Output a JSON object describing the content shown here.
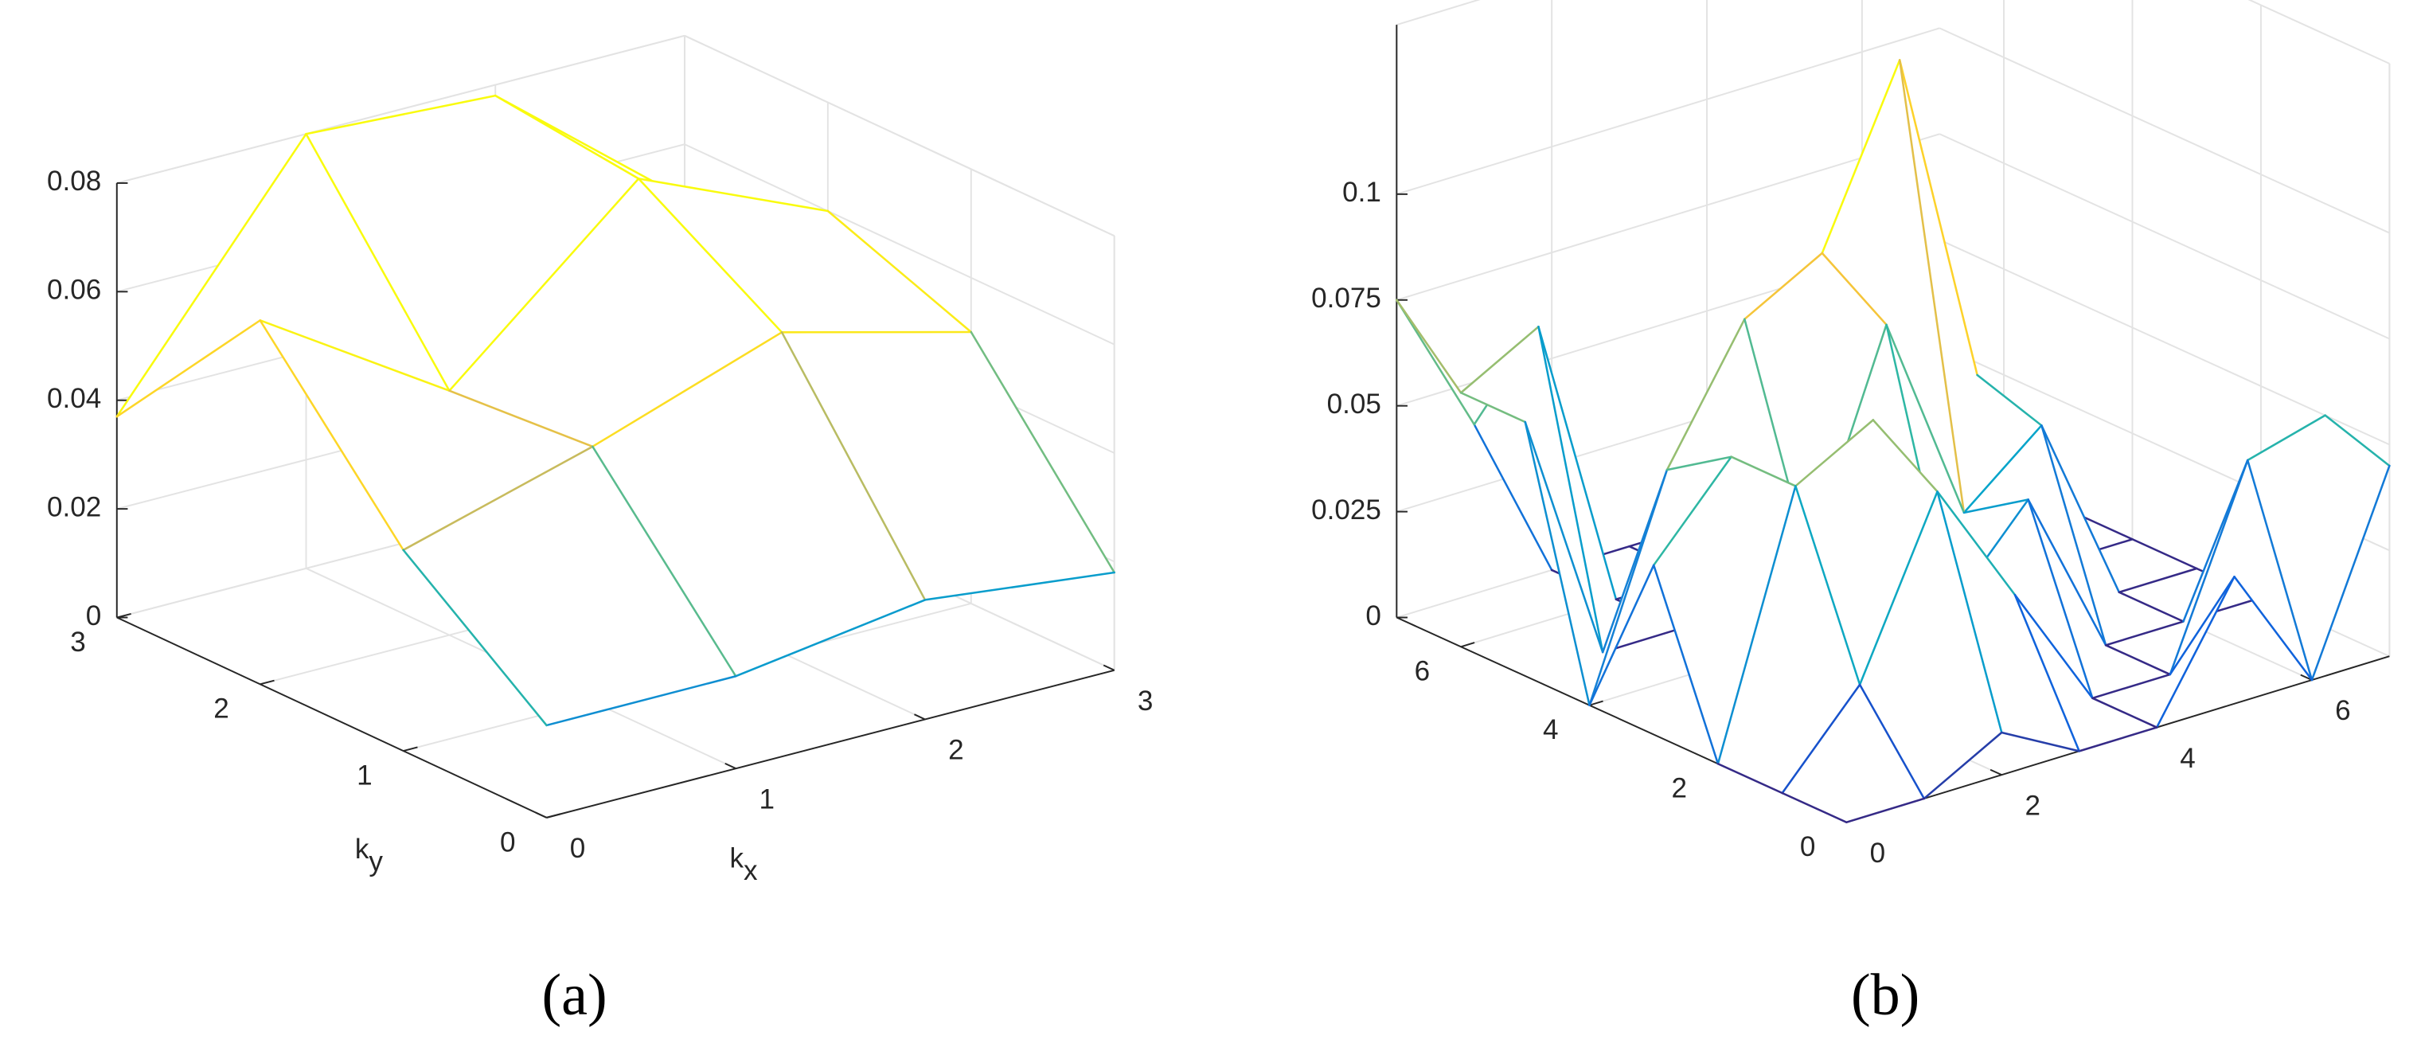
{
  "chart_data": [
    {
      "type": "mesh",
      "label": "(a)",
      "xlabel": "k",
      "xlabel_sub": "x",
      "ylabel": "k",
      "ylabel_sub": "y",
      "x": [
        0,
        1,
        2,
        3
      ],
      "y": [
        0,
        1,
        2,
        3
      ],
      "z": [
        [
          0.017,
          0.017,
          0.022,
          0.018
        ],
        [
          0.037,
          0.047,
          0.059,
          0.05
        ],
        [
          0.067,
          0.045,
          0.075,
          0.06
        ],
        [
          0.037,
          0.08,
          0.078,
          0.05
        ]
      ],
      "xlim": [
        0,
        3
      ],
      "ylim": [
        0,
        3
      ],
      "zlim": [
        0,
        0.08
      ],
      "xticks": [
        0,
        1,
        2,
        3
      ],
      "yticks": [
        0,
        1,
        2,
        3
      ],
      "zticks": [
        0,
        0.02,
        0.04,
        0.06,
        0.08
      ],
      "grid": true,
      "colormap": [
        "#352a87",
        "#0f5cdd",
        "#1481d6",
        "#06a4ca",
        "#2eb7a4",
        "#87bf77",
        "#d1bb59",
        "#fec832",
        "#f9fb0e"
      ]
    },
    {
      "type": "mesh",
      "label": "(b)",
      "x": [
        0,
        1,
        2,
        3,
        4,
        5,
        6,
        7
      ],
      "y": [
        0,
        1,
        2,
        3,
        4,
        5,
        6,
        7
      ],
      "z": [
        [
          0,
          0,
          0.01,
          0,
          0,
          0.03,
          0,
          0.045
        ],
        [
          0,
          0.02,
          0.06,
          0.03,
          0,
          0,
          0.045,
          0.05
        ],
        [
          0,
          0.06,
          0.07,
          0.02,
          0.04,
          0,
          0,
          0
        ],
        [
          0.04,
          0.06,
          0.03,
          0.08,
          0.03,
          0.045,
          0,
          0
        ],
        [
          0,
          0.05,
          0.08,
          0.09,
          0.13,
          0.05,
          0,
          0
        ],
        [
          0.06,
          0,
          0,
          0,
          0.06,
          0,
          0,
          0
        ],
        [
          0.06,
          0.07,
          0,
          0,
          0,
          0,
          0,
          0
        ],
        [
          0.075,
          0.04,
          0,
          0,
          0,
          0,
          0,
          0
        ]
      ],
      "xlim": [
        0,
        7
      ],
      "ylim": [
        0,
        7
      ],
      "zlim": [
        0,
        0.14
      ],
      "xticks": [
        0,
        2,
        4,
        6
      ],
      "yticks": [
        0,
        2,
        4,
        6
      ],
      "zticks": [
        0,
        0.025,
        0.05,
        0.075,
        0.1
      ],
      "grid": true,
      "colormap": [
        "#352a87",
        "#0f5cdd",
        "#1481d6",
        "#06a4ca",
        "#2eb7a4",
        "#87bf77",
        "#d1bb59",
        "#fec832",
        "#f9fb0e"
      ]
    }
  ]
}
